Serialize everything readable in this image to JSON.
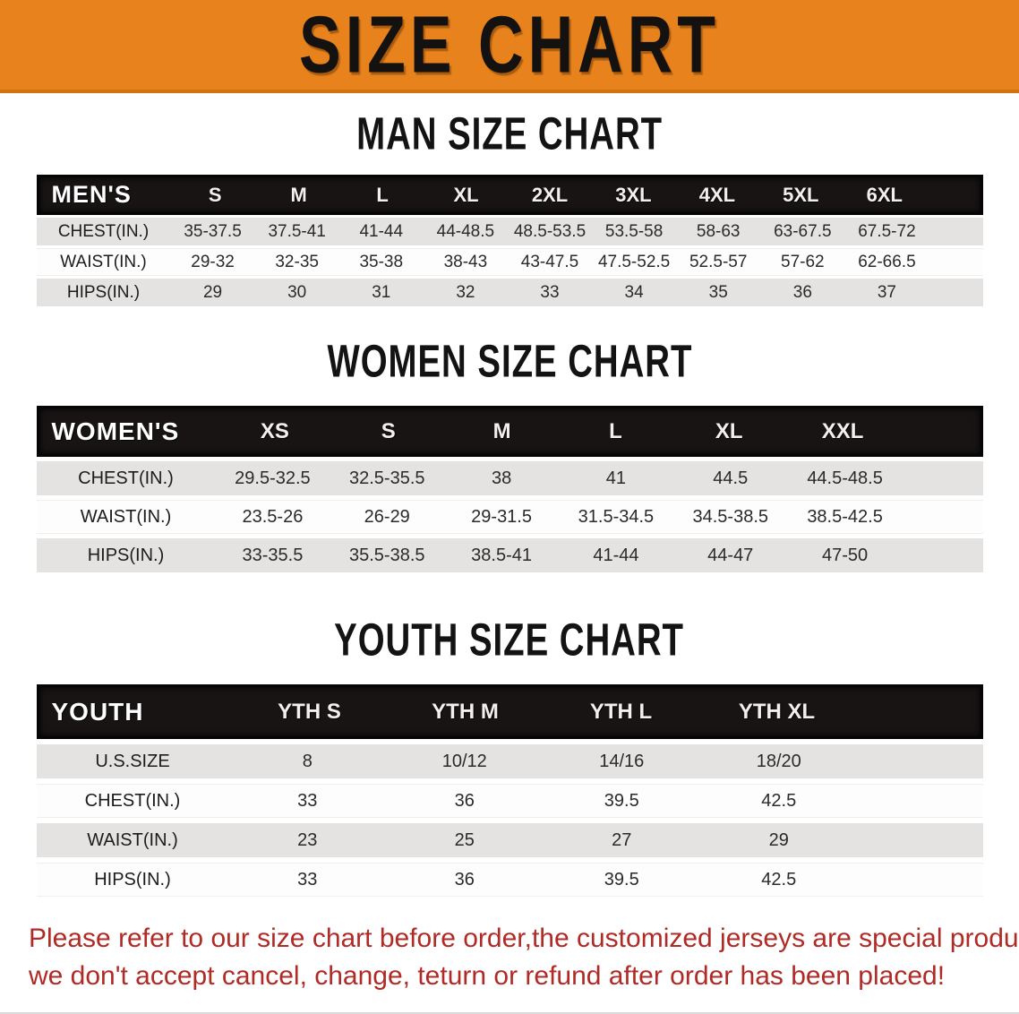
{
  "banner": {
    "title": "SIZE CHART",
    "bg_color": "#E8821C"
  },
  "colors": {
    "header_bar": "#181414",
    "row_gray": "#E4E3E1",
    "row_white": "#FDFDFD",
    "disclaimer_red": "#B02A26"
  },
  "sections": [
    {
      "heading": "MAN SIZE CHART",
      "table": {
        "header_label": "MEN'S",
        "columns": [
          "S",
          "M",
          "L",
          "XL",
          "2XL",
          "3XL",
          "4XL",
          "5XL",
          "6XL"
        ],
        "rows": [
          {
            "label": "CHEST(IN.)",
            "values": [
              "35-37.5",
              "37.5-41",
              "41-44",
              "44-48.5",
              "48.5-53.5",
              "53.5-58",
              "58-63",
              "63-67.5",
              "67.5-72"
            ]
          },
          {
            "label": "WAIST(IN.)",
            "values": [
              "29-32",
              "32-35",
              "35-38",
              "38-43",
              "43-47.5",
              "47.5-52.5",
              "52.5-57",
              "57-62",
              "62-66.5"
            ]
          },
          {
            "label": "HIPS(IN.)",
            "values": [
              "29",
              "30",
              "31",
              "32",
              "33",
              "34",
              "35",
              "36",
              "37"
            ]
          }
        ]
      }
    },
    {
      "heading": "WOMEN SIZE CHART",
      "table": {
        "header_label": "WOMEN'S",
        "columns": [
          "XS",
          "S",
          "M",
          "L",
          "XL",
          "XXL"
        ],
        "rows": [
          {
            "label": "CHEST(IN.)",
            "values": [
              "29.5-32.5",
              "32.5-35.5",
              "38",
              "41",
              "44.5",
              "44.5-48.5"
            ]
          },
          {
            "label": "WAIST(IN.)",
            "values": [
              "23.5-26",
              "26-29",
              "29-31.5",
              "31.5-34.5",
              "34.5-38.5",
              "38.5-42.5"
            ]
          },
          {
            "label": "HIPS(IN.)",
            "values": [
              "33-35.5",
              "35.5-38.5",
              "38.5-41",
              "41-44",
              "44-47",
              "47-50"
            ]
          }
        ]
      }
    },
    {
      "heading": "YOUTH SIZE CHART",
      "table": {
        "header_label": "YOUTH",
        "columns": [
          "YTH S",
          "YTH M",
          "YTH L",
          "YTH XL"
        ],
        "rows": [
          {
            "label": "U.S.SIZE",
            "values": [
              "8",
              "10/12",
              "14/16",
              "18/20"
            ]
          },
          {
            "label": "CHEST(IN.)",
            "values": [
              "33",
              "36",
              "39.5",
              "42.5"
            ]
          },
          {
            "label": "WAIST(IN.)",
            "values": [
              "23",
              "25",
              "27",
              "29"
            ]
          },
          {
            "label": "HIPS(IN.)",
            "values": [
              "33",
              "36",
              "39.5",
              "42.5"
            ]
          }
        ]
      }
    }
  ],
  "disclaimer": {
    "line1": "Please refer to our size chart before order,the customized jerseys are special products,",
    "line2": "we don't accept cancel, change, teturn or refund after order has been placed!"
  }
}
